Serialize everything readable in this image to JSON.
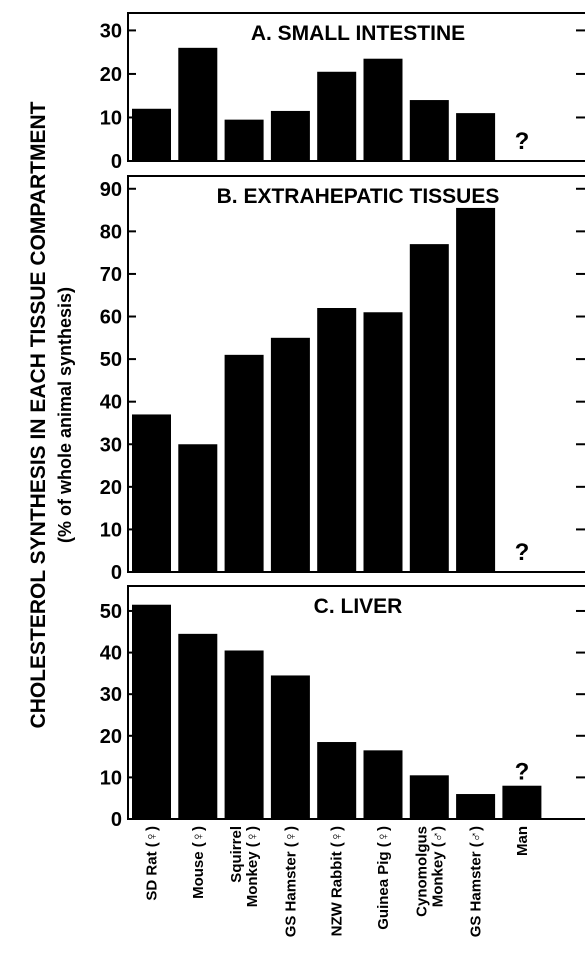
{
  "chart_data": [
    {
      "type": "bar",
      "title": "A. SMALL INTESTINE",
      "ylabel": "CHOLESTEROL SYNTHESIS IN EACH TISSUE COMPARTMENT",
      "ylabel_sub": "(% of whole animal synthesis)",
      "categories": [
        "SD Rat (♀)",
        "Mouse (♀)",
        "Squirrel Monkey (♀)",
        "GS Hamster (♀)",
        "NZW Rabbit (♀)",
        "Guinea Pig (♀)",
        "Cynomolgus Monkey (♂)",
        "GS Hamster (♂)",
        "Man"
      ],
      "values": [
        12,
        26,
        9.5,
        11.5,
        20.5,
        23.5,
        14,
        11,
        null
      ],
      "annotations": [
        {
          "category": "Man",
          "text": "?"
        }
      ],
      "ylim": [
        0,
        34
      ],
      "yticks": [
        0,
        10,
        20,
        30
      ]
    },
    {
      "type": "bar",
      "title": "B. EXTRAHEPATIC TISSUES",
      "categories": [
        "SD Rat (♀)",
        "Mouse (♀)",
        "Squirrel Monkey (♀)",
        "GS Hamster (♀)",
        "NZW Rabbit (♀)",
        "Guinea Pig (♀)",
        "Cynomolgus Monkey (♂)",
        "GS Hamster (♂)",
        "Man"
      ],
      "values": [
        37,
        30,
        51,
        55,
        62,
        61,
        77,
        85.5,
        null
      ],
      "annotations": [
        {
          "category": "Man",
          "text": "?"
        }
      ],
      "ylim": [
        0,
        93
      ],
      "yticks": [
        0,
        10,
        20,
        30,
        40,
        50,
        60,
        70,
        80,
        90
      ]
    },
    {
      "type": "bar",
      "title": "C. LIVER",
      "categories": [
        "SD Rat (♀)",
        "Mouse (♀)",
        "Squirrel Monkey (♀)",
        "GS Hamster (♀)",
        "NZW Rabbit (♀)",
        "Guinea Pig (♀)",
        "Cynomolgus Monkey (♂)",
        "GS Hamster (♂)",
        "Man"
      ],
      "values": [
        51.5,
        44.5,
        40.5,
        34.5,
        18.5,
        16.5,
        10.5,
        6,
        8
      ],
      "annotations": [
        {
          "category": "Man",
          "text": "?"
        }
      ],
      "ylim": [
        0,
        56
      ],
      "yticks": [
        0,
        10,
        20,
        30,
        40,
        50
      ]
    }
  ],
  "xlabels": [
    [
      "SD Rat (♀)"
    ],
    [
      "Mouse (♀)"
    ],
    [
      "Squirrel",
      "Monkey (♀)"
    ],
    [
      "GS Hamster (♀)"
    ],
    [
      "NZW Rabbit (♀)"
    ],
    [
      "Guinea Pig (♀)"
    ],
    [
      "Cynomolgus",
      "Monkey (♂)"
    ],
    [
      "GS Hamster (♂)"
    ],
    [
      "Man"
    ]
  ]
}
